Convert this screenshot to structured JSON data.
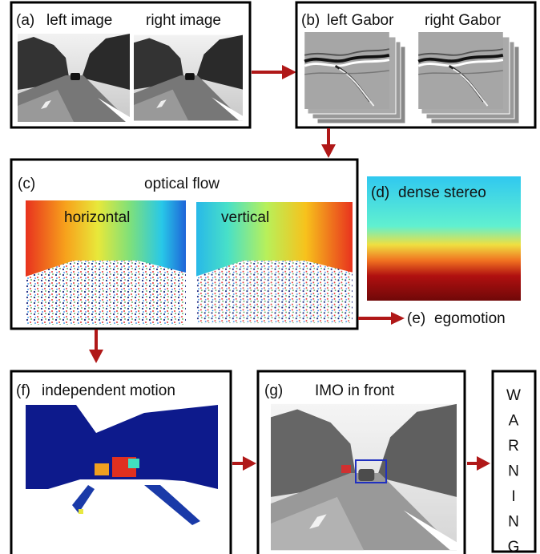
{
  "nodes": [
    {
      "tag": "(a)",
      "captions": [
        "left image",
        "right image"
      ]
    },
    {
      "tag": "(b)",
      "captions": [
        "left Gabor",
        "right Gabor"
      ]
    },
    {
      "tag": "(c)",
      "title": "optical flow",
      "captions": [
        "horizontal",
        "vertical"
      ]
    },
    {
      "tag": "(d)",
      "title": "dense stereo"
    },
    {
      "tag": "(e)",
      "title": "egomotion"
    },
    {
      "tag": "(f)",
      "title": "independent motion"
    },
    {
      "tag": "(g)",
      "title": "IMO in front"
    },
    {
      "letters": [
        "W",
        "A",
        "R",
        "N",
        "I",
        "N",
        "G"
      ]
    }
  ]
}
